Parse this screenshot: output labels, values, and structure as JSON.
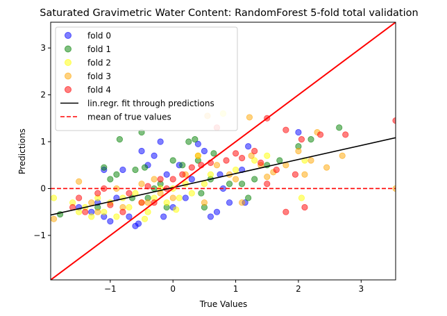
{
  "chart_data": {
    "type": "scatter",
    "title": "Saturated Gravimetric Water Content: RandomForest 5-fold total validation",
    "xlabel": "True Values",
    "ylabel": "Predictions",
    "xlim": [
      -1.95,
      3.55
    ],
    "ylim": [
      -1.95,
      3.55
    ],
    "xticks": [
      -1,
      0,
      1,
      2,
      3
    ],
    "yticks": [
      -1,
      0,
      1,
      2,
      3
    ],
    "tick_labels": [
      "−1",
      "0",
      "1",
      "2",
      "3"
    ],
    "grid": false,
    "legend_position": "top-left",
    "mean_true": 0.0,
    "fit_line": {
      "slope": 0.3,
      "intercept": 0.02
    },
    "identity_line": {
      "slope": 1,
      "intercept": 0
    },
    "legend": [
      {
        "label": "fold 0",
        "kind": "marker",
        "color": "#0000ff"
      },
      {
        "label": "fold 1",
        "kind": "marker",
        "color": "#008000"
      },
      {
        "label": "fold 2",
        "kind": "marker",
        "color": "#ffff00"
      },
      {
        "label": "fold 3",
        "kind": "marker",
        "color": "#ffa500"
      },
      {
        "label": "fold 4",
        "kind": "marker",
        "color": "#ff0000"
      },
      {
        "label": "lin.regr. fit through predictions",
        "kind": "line",
        "color": "#000000"
      },
      {
        "label": "mean of true values",
        "kind": "dashed",
        "color": "#ff0000"
      }
    ],
    "series": [
      {
        "name": "fold 0",
        "color": "#0000ff",
        "points": [
          [
            -1.5,
            -0.4
          ],
          [
            -1.3,
            -0.5
          ],
          [
            -1.2,
            -0.3
          ],
          [
            -1.1,
            -0.6
          ],
          [
            -1.0,
            -0.7
          ],
          [
            -0.9,
            -0.2
          ],
          [
            -0.8,
            0.4
          ],
          [
            -0.7,
            -0.6
          ],
          [
            -0.6,
            -0.8
          ],
          [
            -0.5,
            0.8
          ],
          [
            -0.4,
            0.5
          ],
          [
            -0.3,
            0.7
          ],
          [
            -0.2,
            1.0
          ],
          [
            -0.15,
            -0.6
          ],
          [
            -0.1,
            0.3
          ],
          [
            0.0,
            -0.4
          ],
          [
            0.1,
            0.5
          ],
          [
            0.2,
            -0.2
          ],
          [
            0.3,
            0.2
          ],
          [
            0.4,
            0.95
          ],
          [
            0.5,
            0.8
          ],
          [
            0.6,
            -0.6
          ],
          [
            0.7,
            -0.5
          ],
          [
            0.75,
            0.3
          ],
          [
            0.8,
            0.0
          ],
          [
            0.9,
            -0.3
          ],
          [
            1.1,
            0.4
          ],
          [
            1.15,
            -0.3
          ],
          [
            1.2,
            0.9
          ],
          [
            2.0,
            1.2
          ],
          [
            -1.1,
            0.4
          ],
          [
            -0.55,
            -0.75
          ]
        ]
      },
      {
        "name": "fold 1",
        "color": "#008000",
        "points": [
          [
            -1.8,
            -0.55
          ],
          [
            -1.2,
            -0.4
          ],
          [
            -1.1,
            0.45
          ],
          [
            -1.0,
            0.2
          ],
          [
            -0.9,
            0.3
          ],
          [
            -0.85,
            1.05
          ],
          [
            -0.6,
            0.4
          ],
          [
            -0.5,
            1.2
          ],
          [
            -0.45,
            0.45
          ],
          [
            -0.4,
            -0.2
          ],
          [
            -0.3,
            0.0
          ],
          [
            -0.2,
            0.1
          ],
          [
            -0.1,
            -0.4
          ],
          [
            0.0,
            0.6
          ],
          [
            0.15,
            0.5
          ],
          [
            0.25,
            1.0
          ],
          [
            0.35,
            1.05
          ],
          [
            0.4,
            0.6
          ],
          [
            0.45,
            -0.1
          ],
          [
            0.5,
            -0.4
          ],
          [
            0.6,
            0.2
          ],
          [
            0.65,
            0.75
          ],
          [
            0.9,
            0.1
          ],
          [
            1.1,
            0.1
          ],
          [
            1.2,
            -0.2
          ],
          [
            1.3,
            0.2
          ],
          [
            1.5,
            0.5
          ],
          [
            1.7,
            0.6
          ],
          [
            2.0,
            0.9
          ],
          [
            2.2,
            1.05
          ],
          [
            2.65,
            1.3
          ],
          [
            -0.65,
            -0.2
          ]
        ]
      },
      {
        "name": "fold 2",
        "color": "#ffff00",
        "points": [
          [
            -1.9,
            -0.2
          ],
          [
            -1.6,
            -0.3
          ],
          [
            -1.5,
            -0.5
          ],
          [
            -1.4,
            -0.4
          ],
          [
            -1.3,
            -0.6
          ],
          [
            -1.2,
            -0.2
          ],
          [
            -1.1,
            -0.5
          ],
          [
            -1.0,
            -0.3
          ],
          [
            -0.9,
            -0.6
          ],
          [
            -0.8,
            -0.2
          ],
          [
            -0.7,
            -0.4
          ],
          [
            -0.6,
            -0.1
          ],
          [
            -0.5,
            -0.3
          ],
          [
            -0.4,
            -0.5
          ],
          [
            -0.3,
            -0.2
          ],
          [
            -0.2,
            0.0
          ],
          [
            -0.1,
            -0.3
          ],
          [
            0.0,
            0.0
          ],
          [
            0.1,
            -0.2
          ],
          [
            0.2,
            0.1
          ],
          [
            0.3,
            -0.1
          ],
          [
            0.5,
            0.1
          ],
          [
            0.6,
            0.3
          ],
          [
            0.8,
            1.6
          ],
          [
            1.0,
            0.4
          ],
          [
            1.3,
            0.6
          ],
          [
            1.5,
            0.7
          ],
          [
            2.05,
            -0.2
          ],
          [
            2.1,
            0.6
          ],
          [
            -0.45,
            -0.65
          ],
          [
            0.05,
            -0.45
          ],
          [
            0.4,
            0.7
          ]
        ]
      },
      {
        "name": "fold 3",
        "color": "#ffa500",
        "points": [
          [
            -1.9,
            -0.65
          ],
          [
            -1.5,
            0.15
          ],
          [
            -1.3,
            -0.3
          ],
          [
            -1.2,
            -0.5
          ],
          [
            -0.9,
            0.0
          ],
          [
            -0.8,
            -0.4
          ],
          [
            -0.5,
            0.1
          ],
          [
            -0.4,
            -0.3
          ],
          [
            -0.3,
            0.2
          ],
          [
            -0.2,
            -0.1
          ],
          [
            0.0,
            -0.2
          ],
          [
            0.2,
            0.3
          ],
          [
            0.4,
            0.7
          ],
          [
            0.5,
            -0.3
          ],
          [
            0.55,
            1.55
          ],
          [
            0.7,
            0.5
          ],
          [
            0.9,
            0.3
          ],
          [
            1.0,
            0.2
          ],
          [
            1.1,
            -0.3
          ],
          [
            1.25,
            0.7
          ],
          [
            1.4,
            0.5
          ],
          [
            1.5,
            0.25
          ],
          [
            1.6,
            0.35
          ],
          [
            1.8,
            0.5
          ],
          [
            2.0,
            0.8
          ],
          [
            2.1,
            0.3
          ],
          [
            2.2,
            0.6
          ],
          [
            2.3,
            1.2
          ],
          [
            2.45,
            0.45
          ],
          [
            2.7,
            0.7
          ],
          [
            3.55,
            0.0
          ],
          [
            1.22,
            1.52
          ]
        ]
      },
      {
        "name": "fold 4",
        "color": "#ff0000",
        "points": [
          [
            -1.6,
            -0.4
          ],
          [
            -1.5,
            -0.2
          ],
          [
            -1.4,
            -0.5
          ],
          [
            -1.2,
            -0.1
          ],
          [
            -1.1,
            0.0
          ],
          [
            -1.0,
            -0.35
          ],
          [
            -0.8,
            -0.5
          ],
          [
            -0.7,
            -0.1
          ],
          [
            -0.5,
            -0.3
          ],
          [
            -0.4,
            0.05
          ],
          [
            -0.3,
            -0.3
          ],
          [
            -0.2,
            0.2
          ],
          [
            -0.1,
            0.0
          ],
          [
            0.0,
            0.2
          ],
          [
            0.15,
            0.3
          ],
          [
            0.3,
            0.45
          ],
          [
            0.45,
            0.5
          ],
          [
            0.6,
            0.55
          ],
          [
            0.7,
            1.3
          ],
          [
            0.85,
            0.6
          ],
          [
            1.0,
            0.75
          ],
          [
            1.1,
            0.65
          ],
          [
            1.3,
            0.8
          ],
          [
            1.4,
            0.55
          ],
          [
            1.5,
            0.1
          ],
          [
            1.65,
            0.4
          ],
          [
            1.8,
            1.25
          ],
          [
            1.95,
            0.3
          ],
          [
            2.05,
            1.05
          ],
          [
            2.1,
            -0.4
          ],
          [
            2.35,
            1.15
          ],
          [
            2.75,
            1.15
          ],
          [
            3.55,
            1.45
          ],
          [
            1.8,
            -0.5
          ],
          [
            1.5,
            1.5
          ]
        ]
      }
    ]
  }
}
